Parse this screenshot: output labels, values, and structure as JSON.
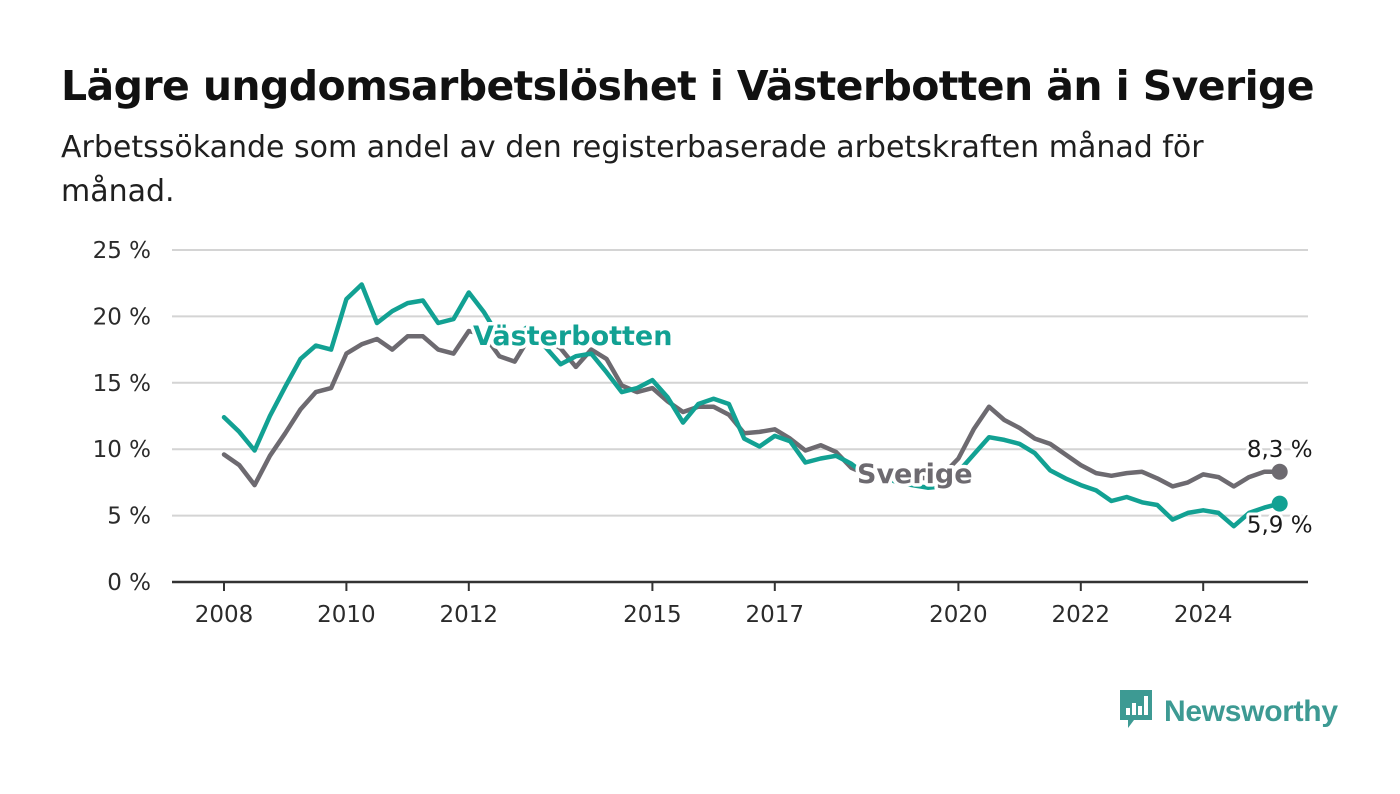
{
  "header": {
    "title": "Lägre ungdomsarbetslöshet i Västerbotten än i Sverige",
    "subtitle": "Arbetssökande som andel av den registerbaserade arbetskraften månad för månad."
  },
  "brand": {
    "name": "Newsworthy",
    "icon": "newsworthy-logo-icon",
    "color": "#3d9a93"
  },
  "colors": {
    "vasterbotten": "#12a193",
    "sverige": "#6d6a70",
    "grid": "#d4d4d4",
    "axis": "#333333"
  },
  "chart_data": {
    "type": "line",
    "title": "Lägre ungdomsarbetslöshet i Västerbotten än i Sverige",
    "subtitle": "Arbetssökande som andel av den registerbaserade arbetskraften månad för månad.",
    "xlabel": "",
    "ylabel": "",
    "ylim": [
      0,
      25
    ],
    "yticks": [
      0,
      5,
      10,
      15,
      20,
      25
    ],
    "ytick_labels": [
      "0 %",
      "5 %",
      "10 %",
      "15 %",
      "20 %",
      "25 %"
    ],
    "xlim": [
      2008,
      2025.8
    ],
    "xticks": [
      2008,
      2010,
      2012,
      2015,
      2017,
      2020,
      2022,
      2024
    ],
    "xtick_labels": [
      "2008",
      "2010",
      "2012",
      "2015",
      "2017",
      "2020",
      "2022",
      "2024"
    ],
    "grid": true,
    "legend": "inline",
    "series": [
      {
        "name": "Sverige",
        "color": "#6d6a70",
        "label_position": "inline",
        "end_label": "8,3 %",
        "points": [
          [
            2008.0,
            9.6
          ],
          [
            2008.25,
            8.8
          ],
          [
            2008.5,
            7.3
          ],
          [
            2008.75,
            9.5
          ],
          [
            2009.0,
            11.2
          ],
          [
            2009.25,
            13.0
          ],
          [
            2009.5,
            14.3
          ],
          [
            2009.75,
            14.6
          ],
          [
            2010.0,
            17.2
          ],
          [
            2010.25,
            17.9
          ],
          [
            2010.5,
            18.3
          ],
          [
            2010.75,
            17.5
          ],
          [
            2011.0,
            18.5
          ],
          [
            2011.25,
            18.5
          ],
          [
            2011.5,
            17.5
          ],
          [
            2011.75,
            17.2
          ],
          [
            2012.0,
            18.9
          ],
          [
            2012.25,
            18.6
          ],
          [
            2012.5,
            17.0
          ],
          [
            2012.75,
            16.6
          ],
          [
            2013.0,
            18.5
          ],
          [
            2013.25,
            18.3
          ],
          [
            2013.5,
            17.6
          ],
          [
            2013.75,
            16.2
          ],
          [
            2014.0,
            17.5
          ],
          [
            2014.25,
            16.8
          ],
          [
            2014.5,
            14.8
          ],
          [
            2014.75,
            14.3
          ],
          [
            2015.0,
            14.6
          ],
          [
            2015.25,
            13.6
          ],
          [
            2015.5,
            12.8
          ],
          [
            2015.75,
            13.2
          ],
          [
            2016.0,
            13.2
          ],
          [
            2016.25,
            12.6
          ],
          [
            2016.5,
            11.2
          ],
          [
            2016.75,
            11.3
          ],
          [
            2017.0,
            11.5
          ],
          [
            2017.25,
            10.8
          ],
          [
            2017.5,
            9.9
          ],
          [
            2017.75,
            10.3
          ],
          [
            2018.0,
            9.8
          ],
          [
            2018.25,
            8.6
          ],
          [
            2018.5,
            8.1
          ],
          [
            2018.75,
            8.3
          ],
          [
            2019.0,
            8.4
          ],
          [
            2019.25,
            7.9
          ],
          [
            2019.5,
            7.8
          ],
          [
            2019.75,
            8.1
          ],
          [
            2020.0,
            9.3
          ],
          [
            2020.25,
            11.5
          ],
          [
            2020.5,
            13.2
          ],
          [
            2020.75,
            12.2
          ],
          [
            2021.0,
            11.6
          ],
          [
            2021.25,
            10.8
          ],
          [
            2021.5,
            10.4
          ],
          [
            2021.75,
            9.6
          ],
          [
            2022.0,
            8.8
          ],
          [
            2022.25,
            8.2
          ],
          [
            2022.5,
            8.0
          ],
          [
            2022.75,
            8.2
          ],
          [
            2023.0,
            8.3
          ],
          [
            2023.25,
            7.8
          ],
          [
            2023.5,
            7.2
          ],
          [
            2023.75,
            7.5
          ],
          [
            2024.0,
            8.1
          ],
          [
            2024.25,
            7.9
          ],
          [
            2024.5,
            7.2
          ],
          [
            2024.75,
            7.9
          ],
          [
            2025.0,
            8.3
          ],
          [
            2025.25,
            8.3
          ]
        ]
      },
      {
        "name": "Västerbotten",
        "color": "#12a193",
        "label_position": "inline",
        "end_label": "5,9 %",
        "points": [
          [
            2008.0,
            12.4
          ],
          [
            2008.25,
            11.3
          ],
          [
            2008.5,
            9.9
          ],
          [
            2008.75,
            12.5
          ],
          [
            2009.0,
            14.7
          ],
          [
            2009.25,
            16.8
          ],
          [
            2009.5,
            17.8
          ],
          [
            2009.75,
            17.5
          ],
          [
            2010.0,
            21.3
          ],
          [
            2010.25,
            22.4
          ],
          [
            2010.5,
            19.5
          ],
          [
            2010.75,
            20.4
          ],
          [
            2011.0,
            21.0
          ],
          [
            2011.25,
            21.2
          ],
          [
            2011.5,
            19.5
          ],
          [
            2011.75,
            19.8
          ],
          [
            2012.0,
            21.8
          ],
          [
            2012.25,
            20.3
          ],
          [
            2012.5,
            18.4
          ],
          [
            2012.75,
            18.6
          ],
          [
            2013.0,
            19.3
          ],
          [
            2013.25,
            17.7
          ],
          [
            2013.5,
            16.4
          ],
          [
            2013.75,
            17.0
          ],
          [
            2014.0,
            17.2
          ],
          [
            2014.25,
            15.8
          ],
          [
            2014.5,
            14.3
          ],
          [
            2014.75,
            14.6
          ],
          [
            2015.0,
            15.2
          ],
          [
            2015.25,
            13.9
          ],
          [
            2015.5,
            12.0
          ],
          [
            2015.75,
            13.4
          ],
          [
            2016.0,
            13.8
          ],
          [
            2016.25,
            13.4
          ],
          [
            2016.5,
            10.8
          ],
          [
            2016.75,
            10.2
          ],
          [
            2017.0,
            11.0
          ],
          [
            2017.25,
            10.6
          ],
          [
            2017.5,
            9.0
          ],
          [
            2017.75,
            9.3
          ],
          [
            2018.0,
            9.5
          ],
          [
            2018.25,
            8.9
          ],
          [
            2018.5,
            8.0
          ],
          [
            2018.75,
            8.0
          ],
          [
            2019.0,
            7.5
          ],
          [
            2019.25,
            7.3
          ],
          [
            2019.5,
            7.1
          ],
          [
            2019.75,
            7.2
          ],
          [
            2020.0,
            8.3
          ],
          [
            2020.25,
            9.6
          ],
          [
            2020.5,
            10.9
          ],
          [
            2020.75,
            10.7
          ],
          [
            2021.0,
            10.4
          ],
          [
            2021.25,
            9.7
          ],
          [
            2021.5,
            8.4
          ],
          [
            2021.75,
            7.8
          ],
          [
            2022.0,
            7.3
          ],
          [
            2022.25,
            6.9
          ],
          [
            2022.5,
            6.1
          ],
          [
            2022.75,
            6.4
          ],
          [
            2023.0,
            6.0
          ],
          [
            2023.25,
            5.8
          ],
          [
            2023.5,
            4.7
          ],
          [
            2023.75,
            5.2
          ],
          [
            2024.0,
            5.4
          ],
          [
            2024.25,
            5.2
          ],
          [
            2024.5,
            4.2
          ],
          [
            2024.75,
            5.2
          ],
          [
            2025.0,
            5.6
          ],
          [
            2025.25,
            5.9
          ]
        ]
      }
    ]
  }
}
